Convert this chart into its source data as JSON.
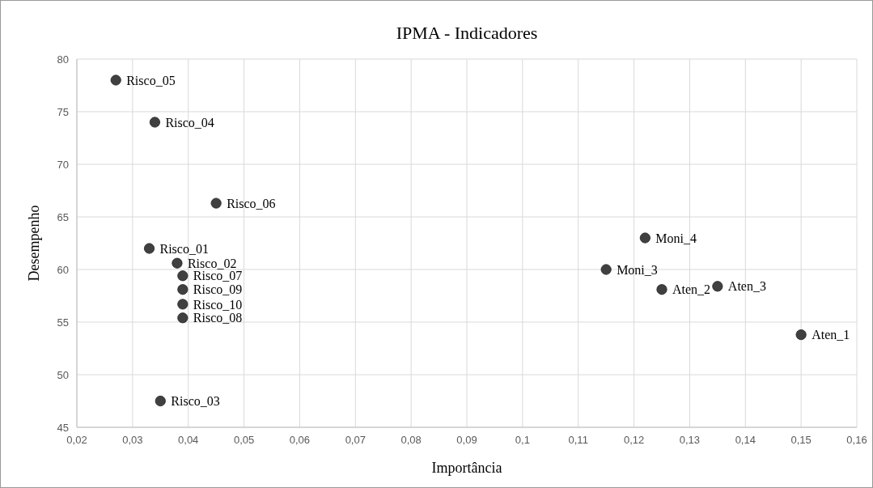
{
  "chart_data": {
    "type": "scatter",
    "title": "IPMA - Indicadores",
    "xlabel": "Importância",
    "ylabel": "Desempenho",
    "x": [
      0.027,
      0.034,
      0.045,
      0.033,
      0.038,
      0.039,
      0.039,
      0.039,
      0.039,
      0.035,
      0.122,
      0.115,
      0.125,
      0.135,
      0.15
    ],
    "series": [
      {
        "color": "#404040",
        "values": [
          78,
          74,
          66.3,
          62,
          60.6,
          59.4,
          58.1,
          56.7,
          55.4,
          47.5,
          63,
          60,
          58.1,
          58.4,
          53.8
        ]
      }
    ],
    "annotations": [
      {
        "text": "Risco_05",
        "x": 0.027,
        "y": 78
      },
      {
        "text": "Risco_04",
        "x": 0.034,
        "y": 74
      },
      {
        "text": "Risco_06",
        "x": 0.045,
        "y": 66.3
      },
      {
        "text": "Risco_01",
        "x": 0.033,
        "y": 62
      },
      {
        "text": "Risco_02",
        "x": 0.038,
        "y": 60.6
      },
      {
        "text": "Risco_07",
        "x": 0.039,
        "y": 59.4
      },
      {
        "text": "Risco_09",
        "x": 0.039,
        "y": 58.1
      },
      {
        "text": "Risco_10",
        "x": 0.039,
        "y": 56.7
      },
      {
        "text": "Risco_08",
        "x": 0.039,
        "y": 55.4
      },
      {
        "text": "Risco_03",
        "x": 0.035,
        "y": 47.5
      },
      {
        "text": "Moni_4",
        "x": 0.122,
        "y": 63
      },
      {
        "text": "Moni_3",
        "x": 0.115,
        "y": 60
      },
      {
        "text": "Aten_2",
        "x": 0.125,
        "y": 58.1
      },
      {
        "text": "Aten_3",
        "x": 0.135,
        "y": 58.4
      },
      {
        "text": "Aten_1",
        "x": 0.15,
        "y": 53.8
      }
    ],
    "xlim": [
      0.02,
      0.16
    ],
    "xticks": [
      {
        "value": 0.02,
        "label": "0,02"
      },
      {
        "value": 0.03,
        "label": "0,03"
      },
      {
        "value": 0.04,
        "label": "0,04"
      },
      {
        "value": 0.05,
        "label": "0,05"
      },
      {
        "value": 0.06,
        "label": "0,06"
      },
      {
        "value": 0.07,
        "label": "0,07"
      },
      {
        "value": 0.08,
        "label": "0,08"
      },
      {
        "value": 0.09,
        "label": "0,09"
      },
      {
        "value": 0.1,
        "label": "0,1"
      },
      {
        "value": 0.11,
        "label": "0,11"
      },
      {
        "value": 0.12,
        "label": "0,12"
      },
      {
        "value": 0.13,
        "label": "0,13"
      },
      {
        "value": 0.14,
        "label": "0,14"
      },
      {
        "value": 0.15,
        "label": "0,15"
      },
      {
        "value": 0.16,
        "label": "0,16"
      }
    ],
    "ylim": [
      45,
      80
    ],
    "yticks": [
      45,
      50,
      55,
      60,
      65,
      70,
      75,
      80
    ],
    "grid": true,
    "marker": "circle"
  }
}
